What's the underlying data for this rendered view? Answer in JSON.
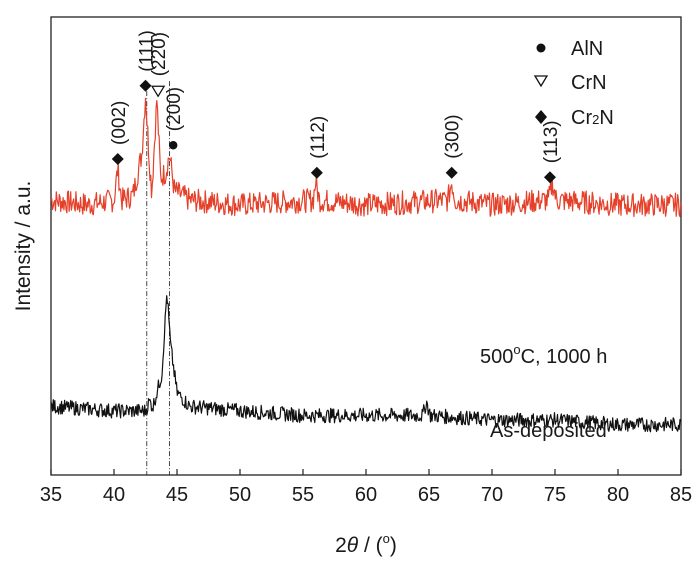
{
  "chart_data": {
    "type": "line",
    "xlabel_prefix": "2",
    "xlabel_theta": "θ",
    "xlabel_suffix": " / (",
    "xlabel_unit": "o",
    "xlabel_close": ")",
    "ylabel": "Intensity / a.u.",
    "xlim": [
      35,
      85
    ],
    "ylim": [
      0,
      100
    ],
    "x_ticks": [
      "35",
      "40",
      "45",
      "50",
      "55",
      "60",
      "65",
      "70",
      "75",
      "80",
      "85"
    ],
    "grid": false,
    "legend": [
      {
        "symbol": "circle",
        "label": "AlN"
      },
      {
        "symbol": "triangle-down-open",
        "label": "CrN"
      },
      {
        "symbol": "diamond",
        "label": "Cr",
        "sub": "2",
        "label_tail": "N"
      }
    ],
    "series": [
      {
        "color": "#e5402a",
        "label_main": "500",
        "label_sup": "o",
        "label_rest": "C, 1000 h",
        "baseline": 59,
        "points": [
          [
            35.0,
            60
          ],
          [
            38.0,
            59
          ],
          [
            40.0,
            60
          ],
          [
            40.3,
            67
          ],
          [
            40.6,
            60
          ],
          [
            41.5,
            61
          ],
          [
            42.2,
            70
          ],
          [
            42.5,
            83
          ],
          [
            42.8,
            69
          ],
          [
            43.0,
            62
          ],
          [
            43.4,
            82
          ],
          [
            43.7,
            65
          ],
          [
            44.1,
            66
          ],
          [
            44.4,
            70
          ],
          [
            44.8,
            62
          ],
          [
            46.0,
            60
          ],
          [
            50.0,
            59
          ],
          [
            55.8,
            60
          ],
          [
            56.0,
            64
          ],
          [
            56.3,
            60
          ],
          [
            60.0,
            59
          ],
          [
            66.5,
            60
          ],
          [
            66.8,
            64
          ],
          [
            67.1,
            60
          ],
          [
            70.0,
            59
          ],
          [
            74.5,
            60
          ],
          [
            74.8,
            64
          ],
          [
            75.1,
            60
          ],
          [
            80.0,
            59
          ],
          [
            85.0,
            59
          ]
        ]
      },
      {
        "color": "#111111",
        "label": "As-deposited",
        "baseline": 14,
        "points": [
          [
            35.0,
            15
          ],
          [
            40.0,
            14
          ],
          [
            42.5,
            14
          ],
          [
            42.8,
            16
          ],
          [
            43.1,
            15
          ],
          [
            43.8,
            22
          ],
          [
            44.2,
            40
          ],
          [
            44.5,
            28
          ],
          [
            45.0,
            18
          ],
          [
            46.0,
            15
          ],
          [
            50.0,
            14
          ],
          [
            55.0,
            13
          ],
          [
            60.0,
            13
          ],
          [
            64.5,
            13
          ],
          [
            64.8,
            16
          ],
          [
            65.1,
            13
          ],
          [
            70.0,
            12
          ],
          [
            75.0,
            12
          ],
          [
            80.0,
            11
          ],
          [
            85.0,
            11
          ]
        ]
      }
    ],
    "reference_lines": [
      42.6,
      44.4
    ],
    "annotations": [
      {
        "x": 40.3,
        "y": 69,
        "marker": "diamond",
        "label": "(002)"
      },
      {
        "x": 42.5,
        "y": 85,
        "marker": "diamond",
        "label": "(111)"
      },
      {
        "x": 43.5,
        "y": 84,
        "marker": "triangle-down-open",
        "label": "(220)"
      },
      {
        "x": 44.7,
        "y": 72,
        "marker": "circle",
        "label": "(200)"
      },
      {
        "x": 56.1,
        "y": 66,
        "marker": "diamond",
        "label": "(112)"
      },
      {
        "x": 66.8,
        "y": 66,
        "marker": "diamond",
        "label": "(300)"
      },
      {
        "x": 74.6,
        "y": 65,
        "marker": "diamond",
        "label": "(113)"
      }
    ]
  }
}
